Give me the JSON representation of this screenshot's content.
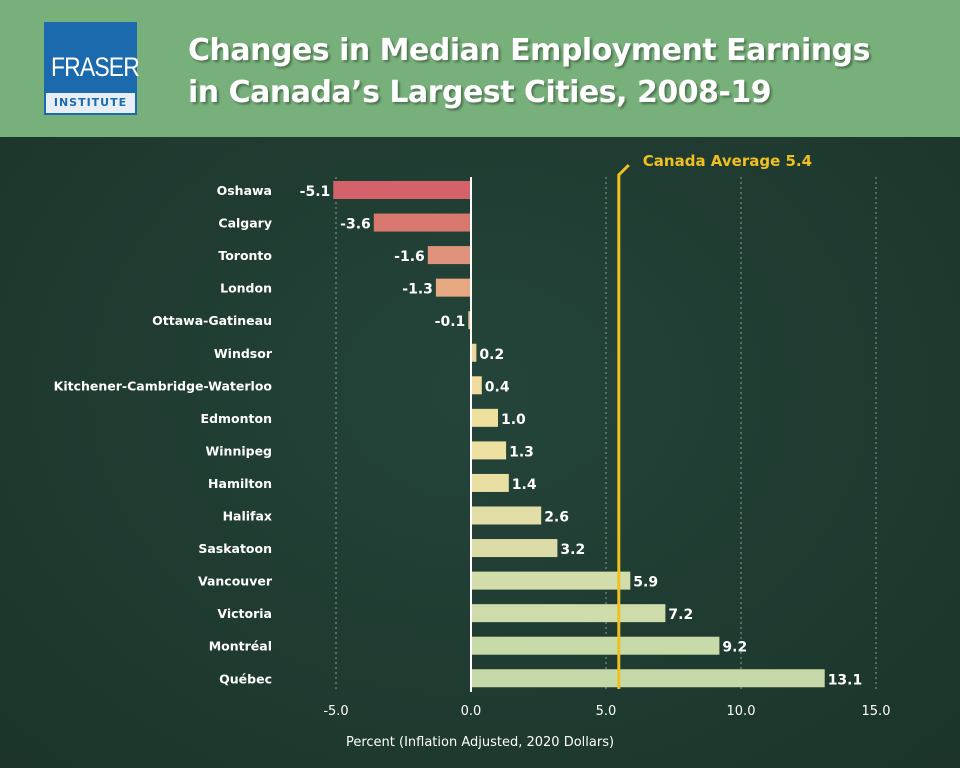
{
  "header": {
    "logo_main": "FRASER",
    "logo_sub": "INSTITUTE",
    "title_line1": "Changes in Median Employment Earnings",
    "title_line2": "in Canada’s Largest Cities, 2008-19"
  },
  "chart_data": {
    "type": "bar",
    "orientation": "horizontal",
    "title": "Changes in Median Employment Earnings in Canada’s Largest Cities, 2008-19",
    "categories": [
      "Oshawa",
      "Calgary",
      "Toronto",
      "London",
      "Ottawa-Gatineau",
      "Windsor",
      "Kitchener-Cambridge-Waterloo",
      "Edmonton",
      "Winnipeg",
      "Hamilton",
      "Halifax",
      "Saskatoon",
      "Vancouver",
      "Victoria",
      "Montréal",
      "Québec"
    ],
    "values": [
      -5.1,
      -3.6,
      -1.6,
      -1.3,
      -0.1,
      0.2,
      0.4,
      1.0,
      1.3,
      1.4,
      2.6,
      3.2,
      5.9,
      7.2,
      9.2,
      13.1
    ],
    "labels": [
      "-5.1",
      "-3.6",
      "-1.6",
      "-1.3",
      "-0.1",
      "0.2",
      "0.4",
      "1.0",
      "1.3",
      "1.4",
      "2.6",
      "3.2",
      "5.9",
      "7.2",
      "9.2",
      "13.1"
    ],
    "colors": [
      "#d4626a",
      "#d8786f",
      "#e0937c",
      "#e6a982",
      "#e9c39a",
      "#ecd59c",
      "#efdc9e",
      "#efdf9c",
      "#ede0a0",
      "#eadfa2",
      "#e2dea8",
      "#dcdca9",
      "#d2ddab",
      "#cedcaa",
      "#c9daa9",
      "#c5d8a8"
    ],
    "xlabel": "Percent (Inflation Adjusted, 2020 Dollars)",
    "xlim": [
      -5.0,
      15.0
    ],
    "xticks": [
      -5,
      0,
      5,
      10,
      15
    ],
    "xtick_labels": [
      "-5.0",
      "0.0",
      "5.0",
      "10.0",
      "15.0"
    ],
    "grid": true,
    "reference_line": {
      "value": 5.4,
      "label": "Canada Average 5.4",
      "color": "#f0c020"
    }
  }
}
